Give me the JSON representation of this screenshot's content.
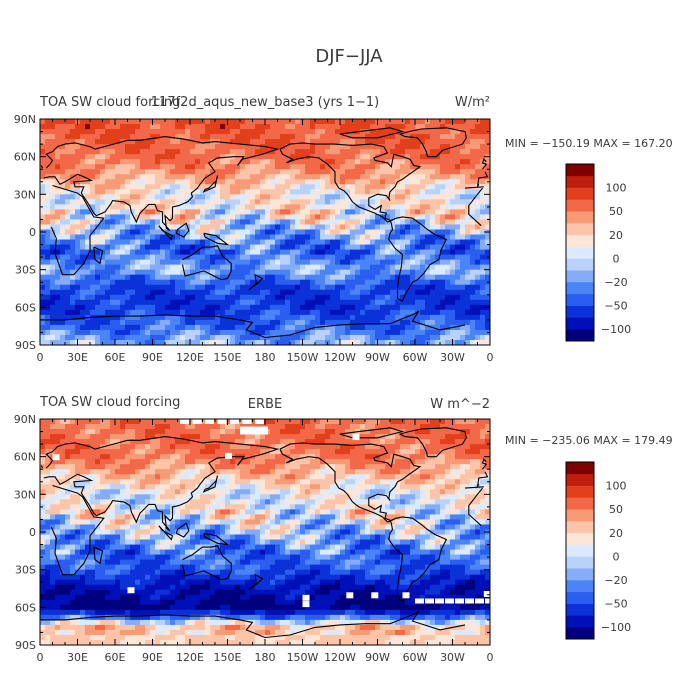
{
  "title": "DJF−JJA",
  "panels": [
    {
      "left_title": "TOA SW cloud forcing",
      "center_title": "117f2d_aqus_new_base3 (yrs 1−1)",
      "units": "W/m²",
      "stats": "MIN = −150.19  MAX = 167.20",
      "min": -150.19,
      "max": 167.2
    },
    {
      "left_title": "TOA SW cloud forcing",
      "center_title": "ERBE",
      "units": "W  m^−2",
      "stats": "MIN = −235.06  MAX = 179.49",
      "min": -235.06,
      "max": 179.49
    }
  ],
  "colorbar": {
    "levels": [
      -150,
      -100,
      -75,
      -50,
      -35,
      -20,
      -10,
      0,
      10,
      20,
      35,
      50,
      75,
      100,
      150
    ],
    "labels": [
      "100",
      "50",
      "20",
      "0",
      "−20",
      "−50",
      "−100"
    ],
    "label_values": [
      100,
      50,
      20,
      0,
      -20,
      -50,
      -100
    ],
    "colors": [
      "#00007f",
      "#0010b8",
      "#0a32d8",
      "#2a5ef0",
      "#4a84f6",
      "#84acf8",
      "#b8d2fa",
      "#dceafd",
      "#fde6d8",
      "#fcc4a8",
      "#f99a76",
      "#f26848",
      "#e2401c",
      "#c01e0c",
      "#7f0000"
    ]
  },
  "axes": {
    "lat_ticks": [
      "90N",
      "60N",
      "30N",
      "0",
      "30S",
      "60S",
      "90S"
    ],
    "lon_ticks": [
      "0",
      "30E",
      "60E",
      "90E",
      "120E",
      "150E",
      "180",
      "150W",
      "120W",
      "90W",
      "60W",
      "30W",
      "0"
    ]
  },
  "chart_data": [
    {
      "type": "heatmap",
      "title": "117f2d_aqus_new_base3 (yrs 1−1)",
      "variable": "TOA SW cloud forcing",
      "units": "W/m²",
      "season_difference": "DJF−JJA",
      "min": -150.19,
      "max": 167.2,
      "x_axis": "longitude",
      "x_range": [
        0,
        360
      ],
      "y_axis": "latitude",
      "y_range": [
        -90,
        90
      ],
      "zonal_profile_lat": [
        -90,
        -75,
        -60,
        -45,
        -30,
        -15,
        0,
        15,
        30,
        45,
        60,
        75,
        90
      ],
      "zonal_profile_value": [
        -10,
        -40,
        -60,
        -55,
        -15,
        -40,
        -15,
        15,
        10,
        40,
        60,
        70,
        75
      ]
    },
    {
      "type": "heatmap",
      "title": "ERBE",
      "variable": "TOA SW cloud forcing",
      "units": "W  m^−2",
      "season_difference": "DJF−JJA",
      "min": -235.06,
      "max": 179.49,
      "x_axis": "longitude",
      "x_range": [
        0,
        360
      ],
      "y_axis": "latitude",
      "y_range": [
        -90,
        90
      ],
      "zonal_profile_lat": [
        -90,
        -75,
        -60,
        -45,
        -30,
        -15,
        0,
        15,
        30,
        45,
        60,
        75,
        90
      ],
      "zonal_profile_value": [
        20,
        30,
        -110,
        -90,
        -45,
        -35,
        -10,
        10,
        5,
        30,
        55,
        60,
        60
      ]
    }
  ]
}
